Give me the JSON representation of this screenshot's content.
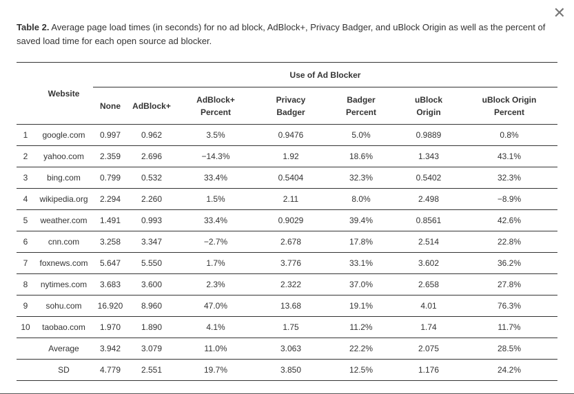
{
  "close_glyph": "✕",
  "caption": {
    "label": "Table 2.",
    "text": "Average page load times (in seconds) for no ad block, AdBlock+, Privacy Badger, and uBlock Origin as well as the percent of saved load time for each open source ad blocker."
  },
  "table": {
    "group_header": "Use of Ad Blocker",
    "website_header": "Website",
    "columns": [
      [
        "None"
      ],
      [
        "AdBlock+"
      ],
      [
        "AdBlock+",
        "Percent"
      ],
      [
        "Privacy",
        "Badger"
      ],
      [
        "Badger",
        "Percent"
      ],
      [
        "uBlock",
        "Origin"
      ],
      [
        "uBlock Origin",
        "Percent"
      ]
    ],
    "rows": [
      [
        "1",
        "google.com",
        "0.997",
        "0.962",
        "3.5%",
        "0.9476",
        "5.0%",
        "0.9889",
        "0.8%"
      ],
      [
        "2",
        "yahoo.com",
        "2.359",
        "2.696",
        "−14.3%",
        "1.92",
        "18.6%",
        "1.343",
        "43.1%"
      ],
      [
        "3",
        "bing.com",
        "0.799",
        "0.532",
        "33.4%",
        "0.5404",
        "32.3%",
        "0.5402",
        "32.3%"
      ],
      [
        "4",
        "wikipedia.org",
        "2.294",
        "2.260",
        "1.5%",
        "2.11",
        "8.0%",
        "2.498",
        "−8.9%"
      ],
      [
        "5",
        "weather.com",
        "1.491",
        "0.993",
        "33.4%",
        "0.9029",
        "39.4%",
        "0.8561",
        "42.6%"
      ],
      [
        "6",
        "cnn.com",
        "3.258",
        "3.347",
        "−2.7%",
        "2.678",
        "17.8%",
        "2.514",
        "22.8%"
      ],
      [
        "7",
        "foxnews.com",
        "5.647",
        "5.550",
        "1.7%",
        "3.776",
        "33.1%",
        "3.602",
        "36.2%"
      ],
      [
        "8",
        "nytimes.com",
        "3.683",
        "3.600",
        "2.3%",
        "2.322",
        "37.0%",
        "2.658",
        "27.8%"
      ],
      [
        "9",
        "sohu.com",
        "16.920",
        "8.960",
        "47.0%",
        "13.68",
        "19.1%",
        "4.01",
        "76.3%"
      ],
      [
        "10",
        "taobao.com",
        "1.970",
        "1.890",
        "4.1%",
        "1.75",
        "11.2%",
        "1.74",
        "11.7%"
      ],
      [
        "",
        "Average",
        "3.942",
        "3.079",
        "11.0%",
        "3.063",
        "22.2%",
        "2.075",
        "28.5%"
      ],
      [
        "",
        "SD",
        "4.779",
        "2.551",
        "19.7%",
        "3.850",
        "12.5%",
        "1.176",
        "24.2%"
      ]
    ]
  }
}
